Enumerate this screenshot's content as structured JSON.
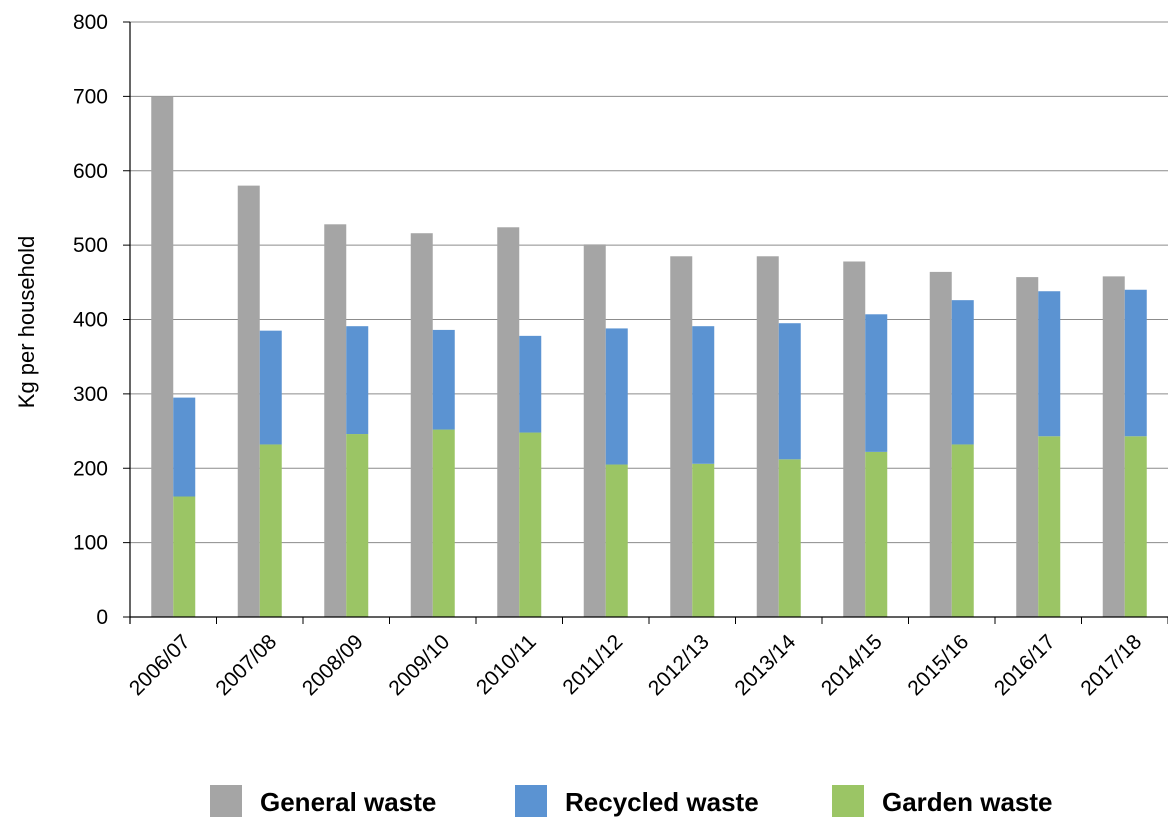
{
  "chart_data": {
    "type": "bar",
    "stacked_series": [
      "Garden waste",
      "Recycled waste"
    ],
    "categories": [
      "2006/07",
      "2007/08",
      "2008/09",
      "2009/10",
      "2010/11",
      "2011/12",
      "2012/13",
      "2013/14",
      "2014/15",
      "2015/16",
      "2016/17",
      "2017/18"
    ],
    "series": [
      {
        "name": "General waste",
        "color": "#a5a5a5",
        "values": [
          700,
          580,
          528,
          516,
          524,
          501,
          485,
          485,
          478,
          464,
          457,
          458
        ]
      },
      {
        "name": "Recycled waste",
        "color": "#5b93d2",
        "values": [
          133,
          153,
          145,
          134,
          130,
          183,
          185,
          183,
          185,
          194,
          195,
          197
        ]
      },
      {
        "name": "Garden waste",
        "color": "#9bc565",
        "values": [
          162,
          232,
          246,
          252,
          248,
          205,
          206,
          212,
          222,
          232,
          243,
          243
        ]
      }
    ],
    "ylabel": "Kg per household",
    "xlabel": "",
    "ylim": [
      0,
      800
    ],
    "yticks": [
      0,
      100,
      200,
      300,
      400,
      500,
      600,
      700,
      800
    ],
    "grid": true,
    "legend": "bottom"
  }
}
